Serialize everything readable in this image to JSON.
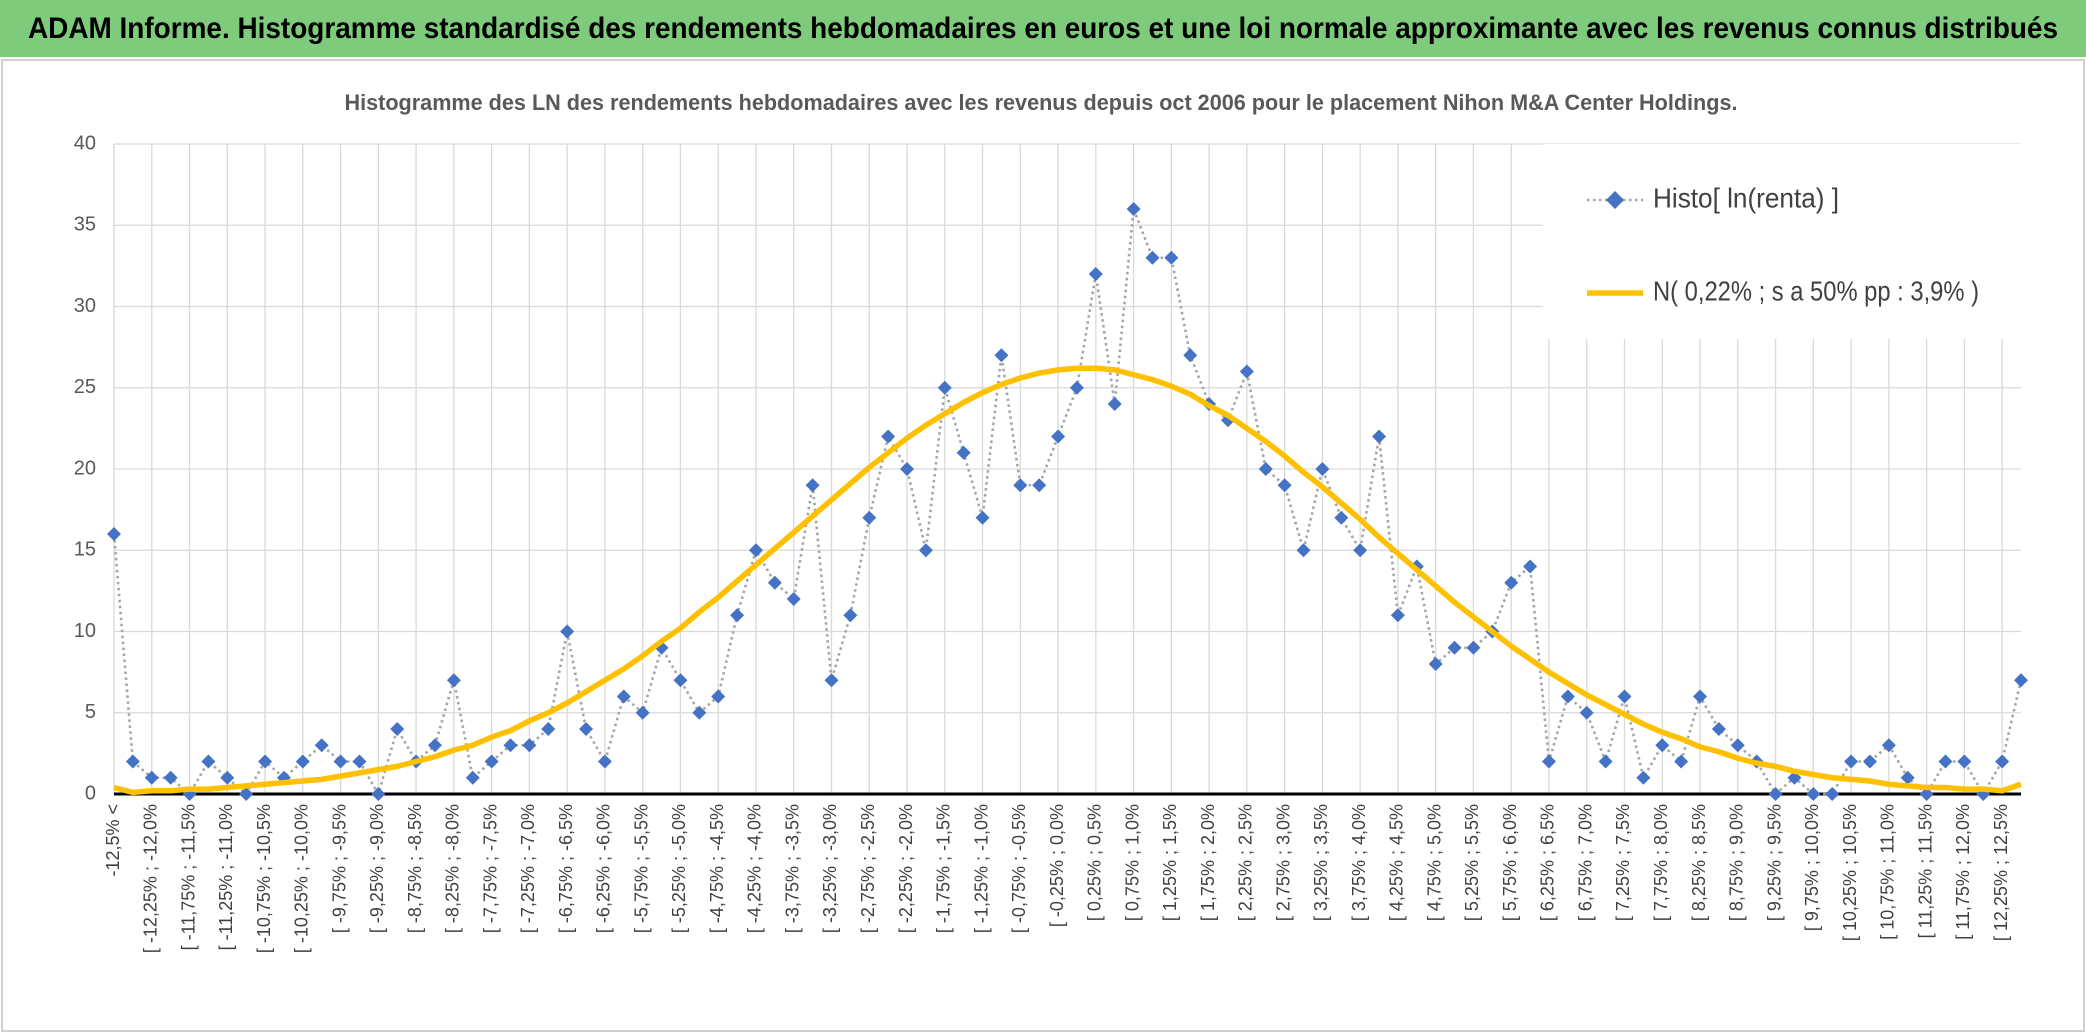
{
  "chart_data": {
    "type": "line",
    "header": "ADAM Informe. Histogramme standardisé des rendements hebdomadaires en euros et une loi normale approximante avec les revenus connus distribués",
    "title": "Histogramme des LN des rendements hebdomadaires avec les revenus depuis oct 2006 pour le placement Nihon M&A Center Holdings.",
    "categories": [
      "-12,5% <",
      null,
      "[ -12,25% ; -12,0%",
      null,
      "[ -11,75% ; -11,5%",
      null,
      "[ -11,25% ; -11,0%",
      null,
      "[ -10,75% ; -10,5%",
      null,
      "[ -10,25% ; -10,0%",
      null,
      "[ -9,75% ; -9,5%",
      null,
      "[ -9,25% ; -9,0%",
      null,
      "[ -8,75% ; -8,5%",
      null,
      "[ -8,25% ; -8,0%",
      null,
      "[ -7,75% ; -7,5%",
      null,
      "[ -7,25% ; -7,0%",
      null,
      "[ -6,75% ; -6,5%",
      null,
      "[ -6,25% ; -6,0%",
      null,
      "[ -5,75% ; -5,5%",
      null,
      "[ -5,25% ; -5,0%",
      null,
      "[ -4,75% ; -4,5%",
      null,
      "[ -4,25% ; -4,0%",
      null,
      "[ -3,75% ; -3,5%",
      null,
      "[ -3,25% ; -3,0%",
      null,
      "[ -2,75% ; -2,5%",
      null,
      "[ -2,25% ; -2,0%",
      null,
      "[ -1,75% ; -1,5%",
      null,
      "[ -1,25% ; -1,0%",
      null,
      "[ -0,75% ; -0,5%",
      null,
      "[ -0,25% ; 0,0%",
      null,
      "[ 0,25% ; 0,5%",
      null,
      "[ 0,75% ; 1,0%",
      null,
      "[ 1,25% ; 1,5%",
      null,
      "[ 1,75% ; 2,0%",
      null,
      "[ 2,25% ; 2,5%",
      null,
      "[ 2,75% ; 3,0%",
      null,
      "[ 3,25% ; 3,5%",
      null,
      "[ 3,75% ; 4,0%",
      null,
      "[ 4,25% ; 4,5%",
      null,
      "[ 4,75% ; 5,0%",
      null,
      "[ 5,25% ; 5,5%",
      null,
      "[ 5,75% ; 6,0%",
      null,
      "[ 6,25% ; 6,5%",
      null,
      "[ 6,75% ; 7,0%",
      null,
      "[ 7,25% ; 7,5%",
      null,
      "[ 7,75% ; 8,0%",
      null,
      "[ 8,25% ; 8,5%",
      null,
      "[ 8,75% ; 9,0%",
      null,
      "[ 9,25% ; 9,5%",
      null,
      "[ 9,75% ; 10,0%",
      null,
      "[ 10,25% ; 10,5%",
      null,
      "[ 10,75% ; 11,0%",
      null,
      "[ 11,25% ; 11,5%",
      null,
      "[ 11,75% ; 12,0%",
      null,
      "[ 12,25% ; 12,5%",
      null
    ],
    "series": [
      {
        "name": "Histo[ ln(renta) ]",
        "color": "#4472c4",
        "line_color": "#a5a5a5",
        "line_style": "dotted",
        "marker": "diamond",
        "values": [
          16,
          2,
          1,
          1,
          0,
          2,
          1,
          0,
          2,
          1,
          2,
          3,
          2,
          2,
          0,
          4,
          2,
          3,
          7,
          1,
          2,
          3,
          3,
          4,
          10,
          4,
          2,
          6,
          5,
          9,
          7,
          5,
          6,
          11,
          15,
          13,
          12,
          19,
          7,
          11,
          17,
          22,
          20,
          15,
          25,
          21,
          17,
          27,
          19,
          19,
          22,
          25,
          32,
          24,
          36,
          33,
          33,
          27,
          24,
          23,
          26,
          20,
          19,
          15,
          20,
          17,
          15,
          22,
          11,
          14,
          8,
          9,
          9,
          10,
          13,
          14,
          2,
          6,
          5,
          2,
          6,
          1,
          3,
          2,
          6,
          4,
          3,
          2,
          0,
          1,
          0,
          0,
          2,
          2,
          3,
          1,
          0,
          2,
          2,
          0,
          2,
          7
        ]
      },
      {
        "name": "N( 0,22% ; s a 50% pp : 3,9% )",
        "color": "#ffc000",
        "line_style": "solid",
        "values": [
          0.4,
          0.1,
          0.2,
          0.2,
          0.3,
          0.3,
          0.4,
          0.5,
          0.6,
          0.7,
          0.8,
          0.9,
          1.1,
          1.3,
          1.5,
          1.7,
          2.0,
          2.3,
          2.7,
          3.0,
          3.5,
          3.9,
          4.5,
          5.0,
          5.6,
          6.3,
          7.0,
          7.7,
          8.5,
          9.4,
          10.2,
          11.2,
          12.1,
          13.1,
          14.1,
          15.1,
          16.1,
          17.1,
          18.1,
          19.1,
          20.1,
          21.0,
          21.9,
          22.7,
          23.4,
          24.1,
          24.7,
          25.2,
          25.6,
          25.9,
          26.1,
          26.2,
          26.2,
          26.1,
          25.8,
          25.5,
          25.1,
          24.6,
          23.9,
          23.3,
          22.5,
          21.7,
          20.8,
          19.8,
          18.9,
          17.9,
          16.9,
          15.8,
          14.8,
          13.8,
          12.8,
          11.8,
          10.9,
          10.0,
          9.1,
          8.3,
          7.5,
          6.8,
          6.1,
          5.5,
          4.9,
          4.3,
          3.8,
          3.4,
          2.9,
          2.6,
          2.2,
          1.9,
          1.7,
          1.4,
          1.2,
          1.0,
          0.9,
          0.8,
          0.6,
          0.5,
          0.4,
          0.4,
          0.3,
          0.3,
          0.2,
          0.6
        ]
      }
    ],
    "ylim": [
      0,
      40
    ],
    "yticks": [
      0,
      5,
      10,
      15,
      20,
      25,
      30,
      35,
      40
    ],
    "grid": true,
    "legend": "upper right"
  }
}
